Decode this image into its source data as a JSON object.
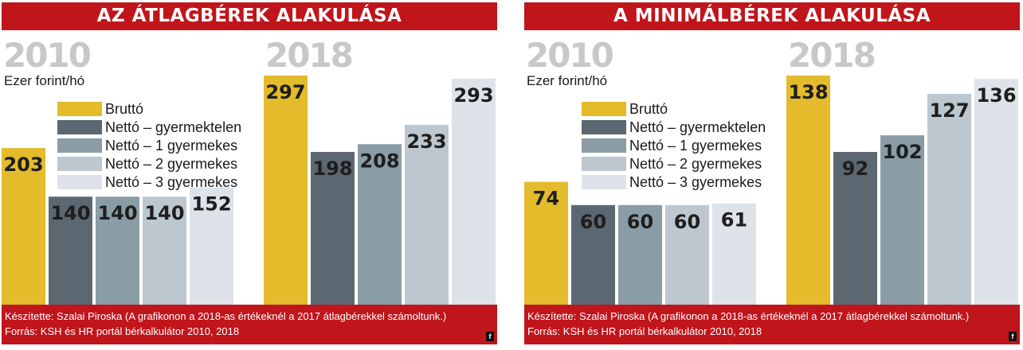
{
  "panels": [
    {
      "title": "AZ ÁTLAGBÉREK ALAKULÁSA",
      "footer_line1": "Készítette: Szalai Piroska (A grafikonon a 2018-as értékeknél a 2017 átlagbérekkel számoltunk.)",
      "footer_line2": "Forrás: KSH és HR portál bérkalkulátor 2010, 2018",
      "logo": "f"
    },
    {
      "title": "A MINIMÁLBÉREK ALAKULÁSA",
      "footer_line1": "Készítette: Szalai Piroska (A grafikonon a 2018-as értékeknél a 2017 átlagbérekkel számoltunk.)",
      "footer_line2": "Forrás: KSH és HR portál bérkalkulátor 2010, 2018",
      "logo": "f"
    }
  ],
  "chart_data": [
    {
      "type": "bar",
      "title": "AZ ÁTLAGBÉREK ALAKULÁSA",
      "ylabel": "Ezer forint/hó",
      "categories": [
        "2010",
        "2018"
      ],
      "series": [
        {
          "name": "Bruttó",
          "values": [
            203,
            297
          ],
          "color": "#e4bb2a"
        },
        {
          "name": "Nettó – gyermektelen",
          "values": [
            140,
            198
          ],
          "color": "#5b6872"
        },
        {
          "name": "Nettó – 1 gyermekes",
          "values": [
            140,
            208
          ],
          "color": "#8a9ca6"
        },
        {
          "name": "Nettó – 2 gyermekes",
          "values": [
            140,
            233
          ],
          "color": "#bcc7cf"
        },
        {
          "name": "Nettó – 3 gyermekes",
          "values": [
            152,
            293
          ],
          "color": "#dde3e8"
        }
      ],
      "ylim": [
        0,
        297
      ],
      "grid": false,
      "legend": "top-left"
    },
    {
      "type": "bar",
      "title": "A MINIMÁLBÉREK ALAKULÁSA",
      "ylabel": "Ezer forint/hó",
      "categories": [
        "2010",
        "2018"
      ],
      "series": [
        {
          "name": "Bruttó",
          "values": [
            74,
            138
          ],
          "color": "#e4bb2a"
        },
        {
          "name": "Nettó – gyermektelen",
          "values": [
            60,
            92
          ],
          "color": "#5b6872"
        },
        {
          "name": "Nettó – 1 gyermekes",
          "values": [
            60,
            102
          ],
          "color": "#8a9ca6"
        },
        {
          "name": "Nettó – 2 gyermekes",
          "values": [
            60,
            127
          ],
          "color": "#bcc7cf"
        },
        {
          "name": "Nettó – 3 gyermekes",
          "values": [
            61,
            136
          ],
          "color": "#dde3e8"
        }
      ],
      "ylim": [
        0,
        138
      ],
      "grid": false,
      "legend": "top-center"
    }
  ]
}
